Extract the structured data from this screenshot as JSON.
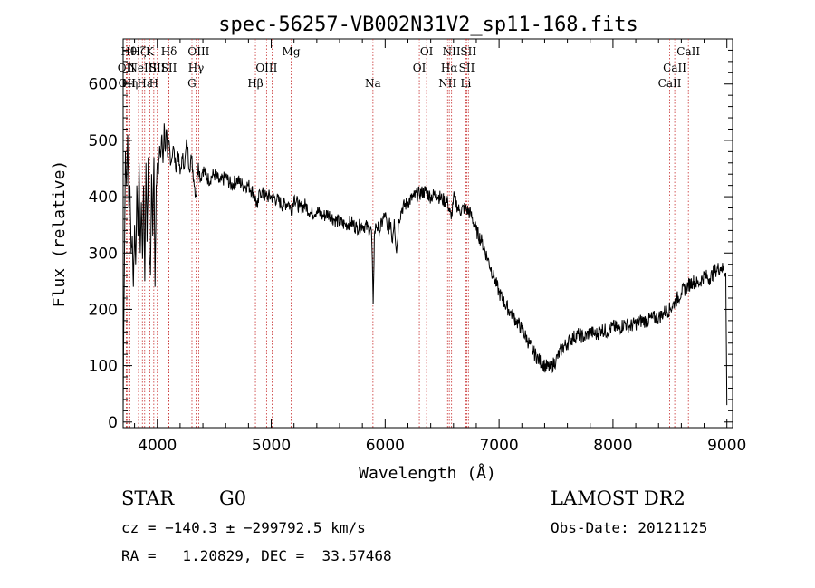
{
  "chart_data": {
    "type": "line",
    "title": "spec-56257-VB002N31V2_sp11-168.fits",
    "xlabel": "Wavelength (Å)",
    "ylabel": "Flux (relative)",
    "xlim": [
      3700,
      9050
    ],
    "ylim": [
      -10,
      680
    ],
    "xticks": [
      4000,
      5000,
      6000,
      7000,
      8000,
      9000
    ],
    "yticks": [
      0,
      100,
      200,
      300,
      400,
      500,
      600
    ],
    "grid": false,
    "series": [
      {
        "color": "#000000",
        "points": [
          [
            3700,
            20
          ],
          [
            3705,
            160
          ],
          [
            3712,
            300
          ],
          [
            3720,
            480
          ],
          [
            3730,
            420
          ],
          [
            3740,
            510
          ],
          [
            3750,
            380
          ],
          [
            3760,
            420
          ],
          [
            3770,
            300
          ],
          [
            3780,
            330
          ],
          [
            3790,
            240
          ],
          [
            3800,
            350
          ],
          [
            3810,
            280
          ],
          [
            3820,
            420
          ],
          [
            3830,
            330
          ],
          [
            3840,
            460
          ],
          [
            3850,
            300
          ],
          [
            3860,
            390
          ],
          [
            3870,
            290
          ],
          [
            3880,
            420
          ],
          [
            3890,
            250
          ],
          [
            3900,
            460
          ],
          [
            3910,
            320
          ],
          [
            3920,
            470
          ],
          [
            3930,
            300
          ],
          [
            3940,
            260
          ],
          [
            3950,
            440
          ],
          [
            3960,
            330
          ],
          [
            3970,
            470
          ],
          [
            3980,
            240
          ],
          [
            3990,
            420
          ],
          [
            4000,
            460
          ],
          [
            4010,
            440
          ],
          [
            4020,
            490
          ],
          [
            4030,
            470
          ],
          [
            4040,
            510
          ],
          [
            4050,
            460
          ],
          [
            4060,
            530
          ],
          [
            4070,
            480
          ],
          [
            4080,
            520
          ],
          [
            4090,
            470
          ],
          [
            4100,
            500
          ],
          [
            4120,
            460
          ],
          [
            4140,
            490
          ],
          [
            4160,
            450
          ],
          [
            4180,
            480
          ],
          [
            4200,
            440
          ],
          [
            4220,
            470
          ],
          [
            4240,
            455
          ],
          [
            4260,
            500
          ],
          [
            4280,
            450
          ],
          [
            4300,
            470
          ],
          [
            4320,
            430
          ],
          [
            4340,
            400
          ],
          [
            4360,
            460
          ],
          [
            4380,
            430
          ],
          [
            4400,
            450
          ],
          [
            4450,
            430
          ],
          [
            4500,
            440
          ],
          [
            4550,
            425
          ],
          [
            4600,
            435
          ],
          [
            4650,
            420
          ],
          [
            4700,
            430
          ],
          [
            4750,
            420
          ],
          [
            4800,
            420
          ],
          [
            4850,
            405
          ],
          [
            4880,
            380
          ],
          [
            4900,
            410
          ],
          [
            4950,
            400
          ],
          [
            5000,
            400
          ],
          [
            5050,
            395
          ],
          [
            5100,
            385
          ],
          [
            5150,
            390
          ],
          [
            5180,
            375
          ],
          [
            5200,
            400
          ],
          [
            5250,
            380
          ],
          [
            5300,
            385
          ],
          [
            5350,
            370
          ],
          [
            5400,
            375
          ],
          [
            5450,
            365
          ],
          [
            5500,
            370
          ],
          [
            5550,
            360
          ],
          [
            5600,
            355
          ],
          [
            5650,
            350
          ],
          [
            5700,
            355
          ],
          [
            5750,
            345
          ],
          [
            5800,
            350
          ],
          [
            5850,
            345
          ],
          [
            5880,
            340
          ],
          [
            5895,
            210
          ],
          [
            5905,
            330
          ],
          [
            5920,
            350
          ],
          [
            5950,
            340
          ],
          [
            6000,
            370
          ],
          [
            6020,
            340
          ],
          [
            6050,
            355
          ],
          [
            6060,
            320
          ],
          [
            6080,
            360
          ],
          [
            6100,
            300
          ],
          [
            6120,
            360
          ],
          [
            6150,
            380
          ],
          [
            6200,
            390
          ],
          [
            6250,
            400
          ],
          [
            6300,
            405
          ],
          [
            6350,
            410
          ],
          [
            6400,
            400
          ],
          [
            6450,
            405
          ],
          [
            6500,
            395
          ],
          [
            6550,
            390
          ],
          [
            6580,
            360
          ],
          [
            6600,
            400
          ],
          [
            6650,
            375
          ],
          [
            6700,
            380
          ],
          [
            6750,
            370
          ],
          [
            6800,
            340
          ],
          [
            6850,
            320
          ],
          [
            6900,
            290
          ],
          [
            6950,
            260
          ],
          [
            7000,
            230
          ],
          [
            7050,
            210
          ],
          [
            7100,
            195
          ],
          [
            7150,
            180
          ],
          [
            7200,
            165
          ],
          [
            7250,
            145
          ],
          [
            7300,
            125
          ],
          [
            7350,
            110
          ],
          [
            7400,
            100
          ],
          [
            7450,
            95
          ],
          [
            7500,
            110
          ],
          [
            7550,
            130
          ],
          [
            7600,
            140
          ],
          [
            7650,
            150
          ],
          [
            7700,
            155
          ],
          [
            7750,
            150
          ],
          [
            7800,
            160
          ],
          [
            7850,
            155
          ],
          [
            7900,
            165
          ],
          [
            7950,
            160
          ],
          [
            8000,
            170
          ],
          [
            8050,
            165
          ],
          [
            8100,
            175
          ],
          [
            8150,
            170
          ],
          [
            8200,
            175
          ],
          [
            8250,
            180
          ],
          [
            8300,
            180
          ],
          [
            8350,
            185
          ],
          [
            8400,
            185
          ],
          [
            8450,
            195
          ],
          [
            8500,
            200
          ],
          [
            8550,
            215
          ],
          [
            8600,
            230
          ],
          [
            8650,
            240
          ],
          [
            8700,
            250
          ],
          [
            8750,
            245
          ],
          [
            8800,
            260
          ],
          [
            8850,
            255
          ],
          [
            8900,
            270
          ],
          [
            8950,
            275
          ],
          [
            8990,
            265
          ],
          [
            9000,
            30
          ]
        ]
      }
    ],
    "lines": [
      {
        "x": 3727,
        "label": "OII",
        "row": 1
      },
      {
        "x": 3734,
        "label": "OII",
        "row": 2
      },
      {
        "x": 3750,
        "label": "Hθ",
        "row": 0
      },
      {
        "x": 3760,
        "label": "Hη",
        "row": 2
      },
      {
        "x": 3835,
        "label": "Hζ",
        "row": 0
      },
      {
        "x": 3869,
        "label": "NeIII",
        "row": 1
      },
      {
        "x": 3889,
        "label": "Hε",
        "row": 2
      },
      {
        "x": 3934,
        "label": "K",
        "row": 0
      },
      {
        "x": 3969,
        "label": "H",
        "row": 2
      },
      {
        "x": 4000,
        "label": "SII",
        "row": 1
      },
      {
        "x": 4102,
        "label": "Hδ",
        "row": 0
      },
      {
        "x": 4102,
        "label": "SII",
        "row": 1
      },
      {
        "x": 4304,
        "label": "G",
        "row": 2
      },
      {
        "x": 4340,
        "label": "Hγ",
        "row": 1
      },
      {
        "x": 4363,
        "label": "OIII",
        "row": 0
      },
      {
        "x": 4861,
        "label": "Hβ",
        "row": 2
      },
      {
        "x": 4959,
        "label": "OIII",
        "row": 1
      },
      {
        "x": 5007,
        "label": "",
        "row": 1
      },
      {
        "x": 5175,
        "label": "Mg",
        "row": 0
      },
      {
        "x": 5893,
        "label": "Na",
        "row": 2
      },
      {
        "x": 6300,
        "label": "OI",
        "row": 1
      },
      {
        "x": 6364,
        "label": "OI",
        "row": 0
      },
      {
        "x": 6548,
        "label": "NII",
        "row": 2
      },
      {
        "x": 6563,
        "label": "Hα",
        "row": 1
      },
      {
        "x": 6583,
        "label": "NII",
        "row": 0
      },
      {
        "x": 6708,
        "label": "Li",
        "row": 2
      },
      {
        "x": 6717,
        "label": "SII",
        "row": 1
      },
      {
        "x": 6731,
        "label": "SII",
        "row": 0
      },
      {
        "x": 8498,
        "label": "CaII",
        "row": 2
      },
      {
        "x": 8542,
        "label": "CaII",
        "row": 1
      },
      {
        "x": 8662,
        "label": "CaII",
        "row": 0
      }
    ]
  },
  "footer": {
    "object_type": "STAR",
    "subclass": "G0",
    "survey": "LAMOST DR2",
    "redshift_line": "cz = −140.3 ± −299792.5 km/s",
    "obs_date_line": "Obs-Date: 20121125",
    "coords_line": "RA =   1.20829, DEC =  33.57468"
  }
}
